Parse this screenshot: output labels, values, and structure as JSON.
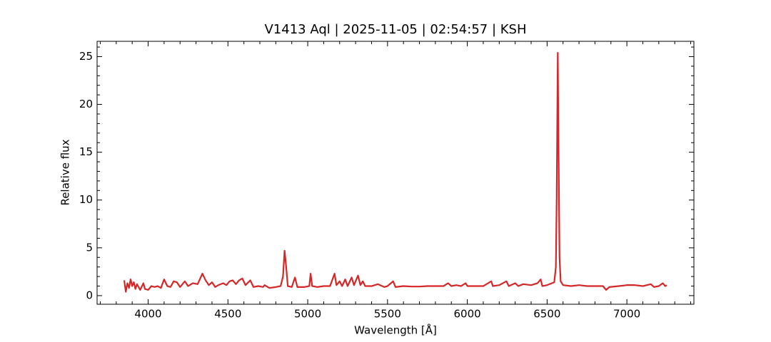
{
  "chart_data": {
    "type": "line",
    "title": "V1413 Aql | 2025-11-05 | 02:54:57 | KSH",
    "xlabel": "Wavelength [Å]",
    "ylabel": "Relative flux",
    "xlim": [
      3680,
      7420
    ],
    "ylim": [
      -0.9,
      26.6
    ],
    "xticks": [
      4000,
      4500,
      5000,
      5500,
      6000,
      6500,
      7000
    ],
    "yticks": [
      0,
      5,
      10,
      15,
      20,
      25
    ],
    "xticks_minor": [
      3700,
      3800,
      3900,
      4100,
      4200,
      4300,
      4400,
      4600,
      4700,
      4800,
      4900,
      5100,
      5200,
      5300,
      5400,
      5600,
      5700,
      5800,
      5900,
      6100,
      6200,
      6300,
      6400,
      6600,
      6700,
      6800,
      6900,
      7100,
      7200,
      7300,
      7400
    ],
    "yticks_minor": [
      1,
      2,
      3,
      4,
      6,
      7,
      8,
      9,
      11,
      12,
      13,
      14,
      16,
      17,
      18,
      19,
      21,
      22,
      23,
      24,
      26
    ],
    "series": [
      {
        "name": "V1413 Aql",
        "color": "#d62728",
        "x": [
          3850,
          3860,
          3870,
          3880,
          3890,
          3900,
          3910,
          3920,
          3930,
          3940,
          3950,
          3970,
          3980,
          4000,
          4020,
          4040,
          4060,
          4080,
          4100,
          4120,
          4140,
          4160,
          4180,
          4200,
          4230,
          4250,
          4280,
          4310,
          4340,
          4360,
          4380,
          4400,
          4420,
          4440,
          4470,
          4490,
          4510,
          4530,
          4550,
          4570,
          4590,
          4610,
          4640,
          4660,
          4690,
          4720,
          4730,
          4760,
          4800,
          4830,
          4845,
          4855,
          4865,
          4875,
          4900,
          4920,
          4935,
          4980,
          5010,
          5018,
          5028,
          5060,
          5100,
          5140,
          5168,
          5180,
          5200,
          5215,
          5235,
          5250,
          5275,
          5290,
          5315,
          5330,
          5345,
          5360,
          5400,
          5440,
          5480,
          5500,
          5535,
          5550,
          5600,
          5650,
          5700,
          5750,
          5800,
          5850,
          5880,
          5900,
          5930,
          5960,
          5990,
          6000,
          6050,
          6100,
          6150,
          6160,
          6200,
          6245,
          6260,
          6300,
          6320,
          6350,
          6400,
          6440,
          6460,
          6470,
          6500,
          6530,
          6545,
          6555,
          6560,
          6563,
          6567,
          6572,
          6578,
          6585,
          6600,
          6650,
          6700,
          6750,
          6800,
          6850,
          6870,
          6890,
          6950,
          7000,
          7050,
          7100,
          7150,
          7170,
          7200,
          7225,
          7240,
          7250
        ],
        "values": [
          1.6,
          0.4,
          1.3,
          0.8,
          1.7,
          1.0,
          1.4,
          0.7,
          1.2,
          0.9,
          0.6,
          1.3,
          0.7,
          0.6,
          1.0,
          0.9,
          1.0,
          0.8,
          1.7,
          1.0,
          0.9,
          1.5,
          1.4,
          0.9,
          1.5,
          1.0,
          1.3,
          1.2,
          2.3,
          1.6,
          1.1,
          1.4,
          0.9,
          1.1,
          1.3,
          1.1,
          1.5,
          1.6,
          1.2,
          1.6,
          1.8,
          1.1,
          1.6,
          0.9,
          1.0,
          0.9,
          1.1,
          0.8,
          0.9,
          1.0,
          2.0,
          4.7,
          3.0,
          1.0,
          0.9,
          1.9,
          0.9,
          0.9,
          1.0,
          2.3,
          1.0,
          0.9,
          1.0,
          1.0,
          2.3,
          1.1,
          1.5,
          1.0,
          1.7,
          1.0,
          1.9,
          1.1,
          2.1,
          1.1,
          1.5,
          1.0,
          1.0,
          1.2,
          0.9,
          1.0,
          1.5,
          0.9,
          1.0,
          0.95,
          0.95,
          1.0,
          1.0,
          1.0,
          1.3,
          1.0,
          1.1,
          1.0,
          1.3,
          1.0,
          1.0,
          1.0,
          1.5,
          1.0,
          1.1,
          1.5,
          1.0,
          1.3,
          1.0,
          1.2,
          1.1,
          1.3,
          1.7,
          1.0,
          1.1,
          1.3,
          1.4,
          3.0,
          10,
          16.5,
          25.4,
          15,
          4,
          1.5,
          1.1,
          1.0,
          1.1,
          1.0,
          1.0,
          1.0,
          0.6,
          0.9,
          1.0,
          1.1,
          1.1,
          1.0,
          1.2,
          0.9,
          1.0,
          1.3,
          1.0,
          1.1
        ]
      }
    ]
  }
}
